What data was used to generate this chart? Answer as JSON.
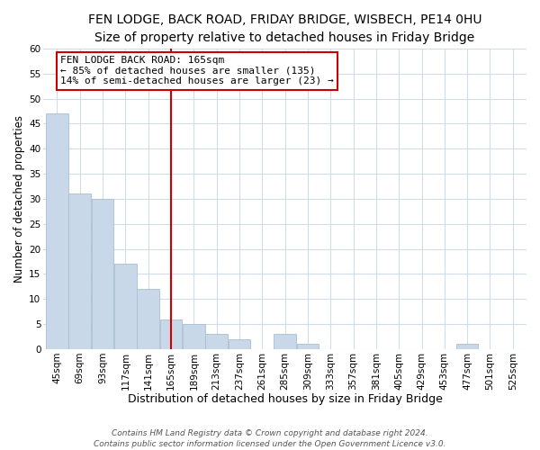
{
  "title": "FEN LODGE, BACK ROAD, FRIDAY BRIDGE, WISBECH, PE14 0HU",
  "subtitle": "Size of property relative to detached houses in Friday Bridge",
  "xlabel": "Distribution of detached houses by size in Friday Bridge",
  "ylabel": "Number of detached properties",
  "bar_color": "#c8d8e8",
  "bar_edge_color": "#a8bfcf",
  "bins": [
    "45sqm",
    "69sqm",
    "93sqm",
    "117sqm",
    "141sqm",
    "165sqm",
    "189sqm",
    "213sqm",
    "237sqm",
    "261sqm",
    "285sqm",
    "309sqm",
    "333sqm",
    "357sqm",
    "381sqm",
    "405sqm",
    "429sqm",
    "453sqm",
    "477sqm",
    "501sqm",
    "525sqm"
  ],
  "values": [
    47,
    31,
    30,
    17,
    12,
    6,
    5,
    3,
    2,
    0,
    3,
    1,
    0,
    0,
    0,
    0,
    0,
    0,
    1,
    0,
    0
  ],
  "ylim": [
    0,
    60
  ],
  "vline_idx": 5,
  "vline_color": "#cc0000",
  "annotation_title": "FEN LODGE BACK ROAD: 165sqm",
  "annotation_line1": "← 85% of detached houses are smaller (135)",
  "annotation_line2": "14% of semi-detached houses are larger (23) →",
  "annotation_box_color": "#ffffff",
  "annotation_box_edge": "#cc0000",
  "footer1": "Contains HM Land Registry data © Crown copyright and database right 2024.",
  "footer2": "Contains public sector information licensed under the Open Government Licence v3.0.",
  "grid_color": "#d0dce8",
  "title_fontsize": 10,
  "xlabel_fontsize": 9,
  "ylabel_fontsize": 8.5,
  "tick_fontsize": 7.5,
  "footer_fontsize": 6.5,
  "annotation_fontsize": 8
}
